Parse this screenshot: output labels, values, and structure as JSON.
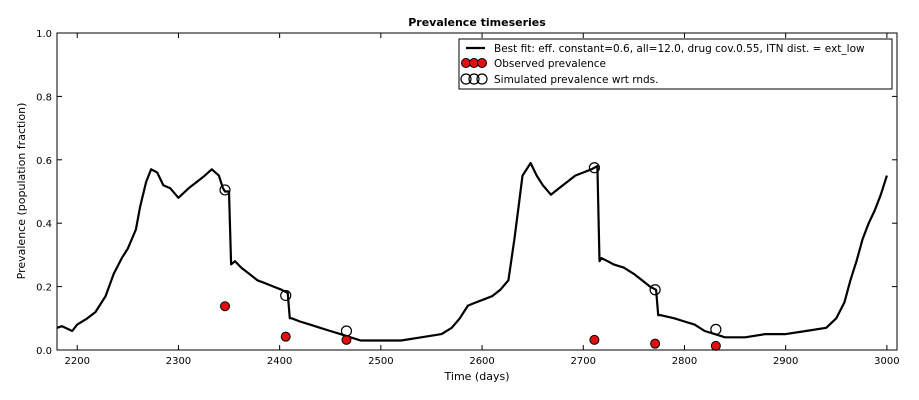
{
  "chart_data": {
    "type": "line",
    "title": "Prevalence timeseries",
    "xlabel": "Time (days)",
    "ylabel": "Prevalence (population fraction)",
    "xlim": [
      2180,
      3010
    ],
    "ylim": [
      0.0,
      1.0
    ],
    "xticks": [
      2200,
      2300,
      2400,
      2500,
      2600,
      2700,
      2800,
      2900,
      3000
    ],
    "yticks": [
      0.0,
      0.2,
      0.4,
      0.6,
      0.8,
      1.0
    ],
    "xtick_labels": [
      "2200",
      "2300",
      "2400",
      "2500",
      "2600",
      "2700",
      "2800",
      "2900",
      "3000"
    ],
    "ytick_labels": [
      "0.0",
      "0.2",
      "0.4",
      "0.6",
      "0.8",
      "1.0"
    ],
    "grid": false,
    "legend_position": "top-right",
    "series": [
      {
        "name": "Best fit: eff. constant=0.6, all=12.0, drug cov.0.55, ITN dist. = ext_low",
        "kind": "line",
        "color": "#000000",
        "x": [
          2180,
          2185,
          2195,
          2200,
          2210,
          2218,
          2228,
          2236,
          2244,
          2250,
          2258,
          2262,
          2268,
          2273,
          2279,
          2285,
          2292,
          2300,
          2310,
          2318,
          2326,
          2333,
          2340,
          2344,
          2346,
          2350,
          2352,
          2356,
          2362,
          2370,
          2378,
          2386,
          2394,
          2402,
          2408,
          2410,
          2412,
          2420,
          2430,
          2440,
          2450,
          2460,
          2470,
          2480,
          2500,
          2520,
          2540,
          2560,
          2570,
          2578,
          2586,
          2594,
          2602,
          2610,
          2618,
          2626,
          2632,
          2636,
          2640,
          2644,
          2648,
          2654,
          2660,
          2668,
          2676,
          2684,
          2692,
          2700,
          2708,
          2714,
          2716,
          2718,
          2724,
          2730,
          2740,
          2750,
          2758,
          2766,
          2772,
          2774,
          2776,
          2790,
          2800,
          2810,
          2820,
          2830,
          2840,
          2850,
          2860,
          2880,
          2900,
          2920,
          2940,
          2950,
          2958,
          2964,
          2970,
          2976,
          2982,
          2988,
          2994,
          3000
        ],
        "y": [
          0.07,
          0.075,
          0.06,
          0.08,
          0.1,
          0.12,
          0.17,
          0.24,
          0.29,
          0.32,
          0.38,
          0.45,
          0.53,
          0.57,
          0.56,
          0.52,
          0.51,
          0.48,
          0.51,
          0.53,
          0.55,
          0.57,
          0.55,
          0.51,
          0.5,
          0.5,
          0.27,
          0.28,
          0.26,
          0.24,
          0.22,
          0.21,
          0.2,
          0.19,
          0.18,
          0.1,
          0.1,
          0.09,
          0.08,
          0.07,
          0.06,
          0.05,
          0.04,
          0.03,
          0.03,
          0.03,
          0.04,
          0.05,
          0.07,
          0.1,
          0.14,
          0.15,
          0.16,
          0.17,
          0.19,
          0.22,
          0.35,
          0.45,
          0.55,
          0.57,
          0.59,
          0.55,
          0.52,
          0.49,
          0.51,
          0.53,
          0.55,
          0.56,
          0.57,
          0.58,
          0.28,
          0.29,
          0.28,
          0.27,
          0.26,
          0.24,
          0.22,
          0.2,
          0.19,
          0.11,
          0.11,
          0.1,
          0.09,
          0.08,
          0.06,
          0.05,
          0.04,
          0.04,
          0.04,
          0.05,
          0.05,
          0.06,
          0.07,
          0.1,
          0.15,
          0.22,
          0.28,
          0.35,
          0.4,
          0.44,
          0.49,
          0.55
        ]
      },
      {
        "name": "Observed prevalence",
        "kind": "scatter",
        "marker": "filled-circle",
        "color": "#e01010",
        "x": [
          2346,
          2406,
          2466,
          2711,
          2771,
          2831
        ],
        "y": [
          0.138,
          0.042,
          0.032,
          0.032,
          0.02,
          0.013
        ]
      },
      {
        "name": "Simulated prevalence wrt rnds.",
        "kind": "scatter",
        "marker": "open-circle",
        "color": "#000000",
        "x": [
          2346,
          2406,
          2466,
          2711,
          2771,
          2831
        ],
        "y": [
          0.505,
          0.172,
          0.06,
          0.575,
          0.19,
          0.065
        ]
      }
    ]
  }
}
